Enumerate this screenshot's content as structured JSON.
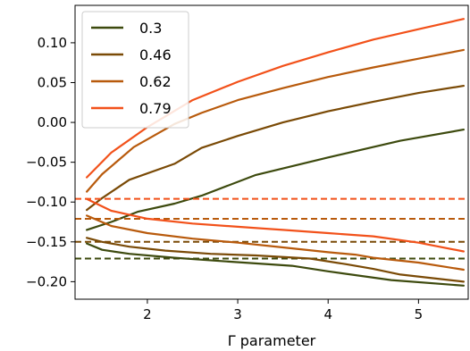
{
  "chart_data": {
    "type": "line",
    "title": "",
    "xlabel": "Γ parameter",
    "ylabel": "",
    "xlim": [
      1.2,
      5.55
    ],
    "ylim": [
      -0.222,
      0.147
    ],
    "xticks": [
      2,
      3,
      4,
      5
    ],
    "xtick_labels": [
      "2",
      "3",
      "4",
      "5"
    ],
    "yticks": [
      -0.2,
      -0.15,
      -0.1,
      -0.05,
      0.0,
      0.05,
      0.1
    ],
    "ytick_labels": [
      "−0.20",
      "−0.15",
      "−0.10",
      "−0.05",
      "0.00",
      "0.05",
      "0.10"
    ],
    "grid": false,
    "legend_position": "top-left",
    "series": [
      {
        "name": "0.3",
        "color": "#3d4a0e",
        "upper": {
          "x": [
            1.33,
            1.6,
            1.9,
            2.3,
            2.6,
            3.2,
            4.0,
            4.8,
            5.5
          ],
          "y": [
            -0.135,
            -0.125,
            -0.112,
            -0.102,
            -0.092,
            -0.066,
            -0.044,
            -0.023,
            -0.009
          ]
        },
        "lower": {
          "x": [
            1.33,
            1.5,
            1.8,
            2.3,
            2.8,
            3.6,
            4.0,
            4.7,
            5.5
          ],
          "y": [
            -0.152,
            -0.16,
            -0.165,
            -0.17,
            -0.174,
            -0.18,
            -0.187,
            -0.198,
            -0.205
          ]
        },
        "threshold": -0.171
      },
      {
        "name": "0.46",
        "color": "#7a4a06",
        "upper": {
          "x": [
            1.33,
            1.5,
            1.8,
            2.3,
            2.6,
            3.0,
            3.5,
            4.0,
            4.5,
            5.0,
            5.5
          ],
          "y": [
            -0.11,
            -0.095,
            -0.072,
            -0.052,
            -0.032,
            -0.017,
            0.0,
            0.014,
            0.026,
            0.037,
            0.046
          ]
        },
        "lower": {
          "x": [
            1.33,
            1.5,
            1.8,
            2.2,
            2.7,
            3.2,
            3.8,
            4.2,
            4.5,
            4.8,
            5.5
          ],
          "y": [
            -0.145,
            -0.15,
            -0.156,
            -0.161,
            -0.165,
            -0.167,
            -0.171,
            -0.178,
            -0.184,
            -0.191,
            -0.2
          ]
        },
        "threshold": -0.15
      },
      {
        "name": "0.62",
        "color": "#b85a0c",
        "upper": {
          "x": [
            1.33,
            1.5,
            1.85,
            2.3,
            2.6,
            3.0,
            3.5,
            4.0,
            4.5,
            5.0,
            5.5
          ],
          "y": [
            -0.087,
            -0.065,
            -0.031,
            -0.002,
            0.012,
            0.028,
            0.043,
            0.057,
            0.069,
            0.08,
            0.091
          ]
        },
        "lower": {
          "x": [
            1.33,
            1.6,
            2.0,
            2.5,
            3.0,
            3.5,
            4.0,
            4.3,
            4.5,
            5.0,
            5.5
          ],
          "y": [
            -0.117,
            -0.13,
            -0.139,
            -0.146,
            -0.151,
            -0.157,
            -0.163,
            -0.166,
            -0.17,
            -0.176,
            -0.185
          ]
        },
        "threshold": -0.121
      },
      {
        "name": "0.79",
        "color": "#f2511a",
        "upper": {
          "x": [
            1.33,
            1.6,
            2.0,
            2.5,
            3.0,
            3.5,
            4.0,
            4.5,
            5.0,
            5.5
          ],
          "y": [
            -0.069,
            -0.038,
            -0.006,
            0.028,
            0.051,
            0.071,
            0.088,
            0.104,
            0.117,
            0.13
          ]
        },
        "lower": {
          "x": [
            1.33,
            1.6,
            2.0,
            2.5,
            3.0,
            3.5,
            4.0,
            4.5,
            5.0,
            5.5
          ],
          "y": [
            -0.096,
            -0.111,
            -0.121,
            -0.127,
            -0.131,
            -0.135,
            -0.139,
            -0.143,
            -0.151,
            -0.162
          ]
        },
        "threshold": -0.096
      }
    ]
  }
}
